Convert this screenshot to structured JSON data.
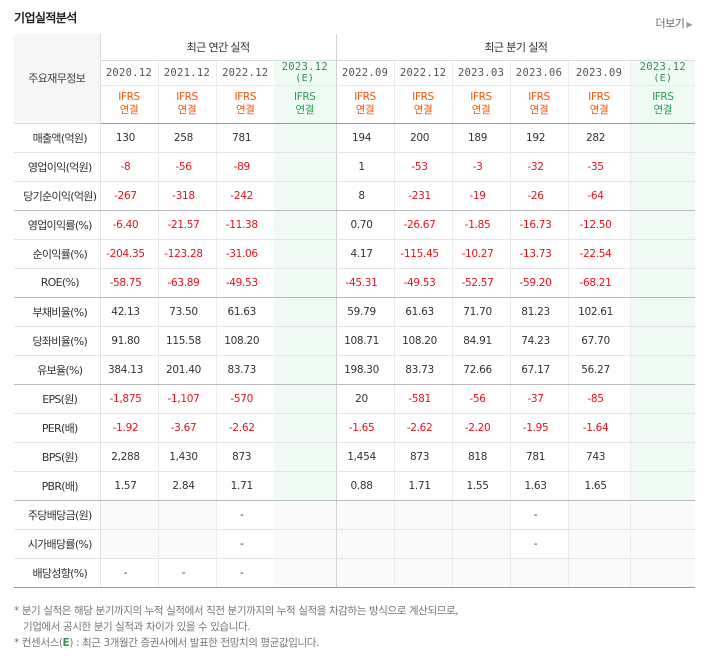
{
  "header": {
    "title": "기업실적분석",
    "more_label": "더보기"
  },
  "table": {
    "item_header": "주요재무정보",
    "annual_label": "최근 연간 실적",
    "quarter_label": "최근 분기 실적",
    "columns": [
      {
        "date": "2020.12",
        "est": "",
        "ifrs": "IFRS",
        "basis": "연결"
      },
      {
        "date": "2021.12",
        "est": "",
        "ifrs": "IFRS",
        "basis": "연결"
      },
      {
        "date": "2022.12",
        "est": "",
        "ifrs": "IFRS",
        "basis": "연결"
      },
      {
        "date": "2023.12",
        "est": "(E)",
        "ifrs": "IFRS",
        "basis": "연결"
      },
      {
        "date": "2022.09",
        "est": "",
        "ifrs": "IFRS",
        "basis": "연결"
      },
      {
        "date": "2022.12",
        "est": "",
        "ifrs": "IFRS",
        "basis": "연결"
      },
      {
        "date": "2023.03",
        "est": "",
        "ifrs": "IFRS",
        "basis": "연결"
      },
      {
        "date": "2023.06",
        "est": "",
        "ifrs": "IFRS",
        "basis": "연결"
      },
      {
        "date": "2023.09",
        "est": "",
        "ifrs": "IFRS",
        "basis": "연결"
      },
      {
        "date": "2023.12",
        "est": "(E)",
        "ifrs": "IFRS",
        "basis": "연결"
      }
    ],
    "rows": [
      {
        "label": "매출액(억원)",
        "values": [
          "130",
          "258",
          "781",
          "",
          "194",
          "200",
          "189",
          "192",
          "282",
          ""
        ]
      },
      {
        "label": "영업이익(억원)",
        "values": [
          "-8",
          "-56",
          "-89",
          "",
          "1",
          "-53",
          "-3",
          "-32",
          "-35",
          ""
        ]
      },
      {
        "label": "당기순이익(억원)",
        "values": [
          "-267",
          "-318",
          "-242",
          "",
          "8",
          "-231",
          "-19",
          "-26",
          "-64",
          ""
        ]
      },
      {
        "label": "영업이익률(%)",
        "values": [
          "-6.40",
          "-21.57",
          "-11.38",
          "",
          "0.70",
          "-26.67",
          "-1.85",
          "-16.73",
          "-12.50",
          ""
        ]
      },
      {
        "label": "순이익률(%)",
        "values": [
          "-204.35",
          "-123.28",
          "-31.06",
          "",
          "4.17",
          "-115.45",
          "-10.27",
          "-13.73",
          "-22.54",
          ""
        ]
      },
      {
        "label": "ROE(%)",
        "values": [
          "-58.75",
          "-63.89",
          "-49.53",
          "",
          "-45.31",
          "-49.53",
          "-52.57",
          "-59.20",
          "-68.21",
          ""
        ]
      },
      {
        "label": "부채비율(%)",
        "values": [
          "42.13",
          "73.50",
          "61.63",
          "",
          "59.79",
          "61.63",
          "71.70",
          "81.23",
          "102.61",
          ""
        ]
      },
      {
        "label": "당좌비율(%)",
        "values": [
          "91.80",
          "115.58",
          "108.20",
          "",
          "108.71",
          "108.20",
          "84.91",
          "74.23",
          "67.70",
          ""
        ]
      },
      {
        "label": "유보율(%)",
        "values": [
          "384.13",
          "201.40",
          "83.73",
          "",
          "198.30",
          "83.73",
          "72.66",
          "67.17",
          "56.27",
          ""
        ]
      },
      {
        "label": "EPS(원)",
        "values": [
          "-1,875",
          "-1,107",
          "-570",
          "",
          "20",
          "-581",
          "-56",
          "-37",
          "-85",
          ""
        ]
      },
      {
        "label": "PER(배)",
        "values": [
          "-1.92",
          "-3.67",
          "-2.62",
          "",
          "-1.65",
          "-2.62",
          "-2.20",
          "-1.95",
          "-1.64",
          ""
        ]
      },
      {
        "label": "BPS(원)",
        "values": [
          "2,288",
          "1,430",
          "873",
          "",
          "1,454",
          "873",
          "818",
          "781",
          "743",
          ""
        ]
      },
      {
        "label": "PBR(배)",
        "values": [
          "1.57",
          "2.84",
          "1.71",
          "",
          "0.88",
          "1.71",
          "1.55",
          "1.63",
          "1.65",
          ""
        ]
      },
      {
        "label": "주당배당금(원)",
        "values": [
          "",
          "",
          "-",
          "",
          "",
          "",
          "",
          "-",
          "",
          ""
        ]
      },
      {
        "label": "시가배당률(%)",
        "values": [
          "",
          "",
          "-",
          "",
          "",
          "",
          "",
          "-",
          "",
          ""
        ]
      },
      {
        "label": "배당성향(%)",
        "values": [
          "-",
          "-",
          "-",
          "",
          "",
          "",
          "",
          "",
          "",
          ""
        ]
      }
    ]
  },
  "notes": {
    "line1": "분기 실적은 해당 분기까지의 누적 실적에서 직전 분기까지의 누적 실적을 차감하는 방식으로 계산되므로,",
    "line2": "기업에서 공시한 분기 실적과 차이가 있을 수 있습니다.",
    "line3_prefix": "컨센서스(",
    "line3_e": "E",
    "line3_suffix": ") : 최근 3개월간 증권사에서 발표한 전망치의 평균값입니다."
  },
  "colors": {
    "negative": "#e4111b",
    "ifrs": "#e8590c",
    "estimate": "#2d9a57",
    "estimate_bg": "#f0faf4"
  }
}
